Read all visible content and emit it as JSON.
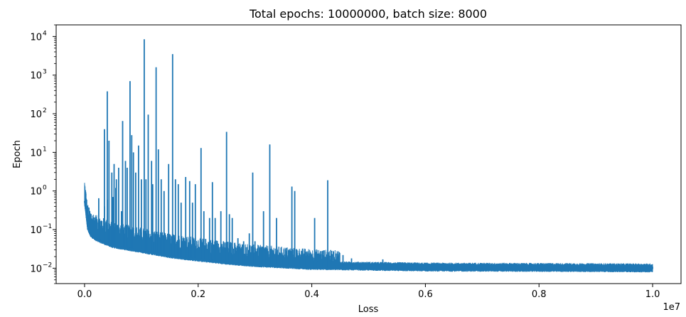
{
  "chart_data": {
    "type": "line",
    "title": "Total epochs: 10000000, batch size: 8000",
    "xlabel": "Loss",
    "ylabel": "Epoch",
    "x_scale_note": "1e7",
    "xlim": [
      -0.05,
      1.05
    ],
    "ylim": [
      0.004,
      20000
    ],
    "y_scale": "log",
    "grid": false,
    "legend": "none",
    "x_ticks": [
      0.0,
      0.2,
      0.4,
      0.6,
      0.8,
      1.0
    ],
    "x_tick_labels": [
      "0.0",
      "0.2",
      "0.4",
      "0.6",
      "0.8",
      "1.0"
    ],
    "y_ticks": [
      0.01,
      0.1,
      1,
      10,
      100,
      1000,
      10000
    ],
    "y_tick_labels": [
      {
        "base": "10",
        "exp": "−2"
      },
      {
        "base": "10",
        "exp": "−1"
      },
      {
        "base": "10",
        "exp": "0"
      },
      {
        "base": "10",
        "exp": "1"
      },
      {
        "base": "10",
        "exp": "2"
      },
      {
        "base": "10",
        "exp": "3"
      },
      {
        "base": "10",
        "exp": "4"
      }
    ],
    "series": [
      {
        "color": "#1f77b4",
        "baseline": [
          [
            0.0,
            0.5
          ],
          [
            0.002,
            0.3
          ],
          [
            0.005,
            0.12
          ],
          [
            0.01,
            0.08
          ],
          [
            0.02,
            0.06
          ],
          [
            0.05,
            0.04
          ],
          [
            0.1,
            0.03
          ],
          [
            0.15,
            0.022
          ],
          [
            0.2,
            0.018
          ],
          [
            0.25,
            0.015
          ],
          [
            0.3,
            0.013
          ],
          [
            0.35,
            0.012
          ],
          [
            0.4,
            0.011
          ],
          [
            0.5,
            0.0105
          ],
          [
            0.6,
            0.01
          ],
          [
            0.8,
            0.0098
          ],
          [
            1.0,
            0.0095
          ]
        ],
        "spikes": [
          [
            0.0,
            0.55
          ],
          [
            0.025,
            0.65
          ],
          [
            0.035,
            0.4
          ],
          [
            0.04,
            0.6
          ],
          [
            0.05,
            0.7
          ],
          [
            0.055,
            1.2
          ],
          [
            0.065,
            0.3
          ],
          [
            0.035,
            40
          ],
          [
            0.04,
            380
          ],
          [
            0.043,
            20
          ],
          [
            0.048,
            3
          ],
          [
            0.052,
            5
          ],
          [
            0.056,
            2
          ],
          [
            0.06,
            4
          ],
          [
            0.067,
            65
          ],
          [
            0.072,
            6
          ],
          [
            0.075,
            4
          ],
          [
            0.08,
            700
          ],
          [
            0.083,
            28
          ],
          [
            0.086,
            10
          ],
          [
            0.09,
            3
          ],
          [
            0.095,
            15
          ],
          [
            0.1,
            2
          ],
          [
            0.105,
            8500
          ],
          [
            0.108,
            2
          ],
          [
            0.112,
            95
          ],
          [
            0.118,
            6
          ],
          [
            0.12,
            1.5
          ],
          [
            0.126,
            1600
          ],
          [
            0.13,
            12
          ],
          [
            0.135,
            2
          ],
          [
            0.14,
            1
          ],
          [
            0.148,
            5
          ],
          [
            0.155,
            3500
          ],
          [
            0.16,
            2
          ],
          [
            0.165,
            1.5
          ],
          [
            0.17,
            0.5
          ],
          [
            0.178,
            2.3
          ],
          [
            0.185,
            1.8
          ],
          [
            0.19,
            0.5
          ],
          [
            0.195,
            1.5
          ],
          [
            0.205,
            13
          ],
          [
            0.21,
            0.3
          ],
          [
            0.22,
            0.2
          ],
          [
            0.225,
            1.7
          ],
          [
            0.23,
            0.2
          ],
          [
            0.24,
            0.3
          ],
          [
            0.25,
            34
          ],
          [
            0.255,
            0.25
          ],
          [
            0.26,
            0.2
          ],
          [
            0.27,
            0.06
          ],
          [
            0.28,
            0.05
          ],
          [
            0.29,
            0.08
          ],
          [
            0.296,
            3
          ],
          [
            0.3,
            0.05
          ],
          [
            0.31,
            0.03
          ],
          [
            0.315,
            0.3
          ],
          [
            0.32,
            0.03
          ],
          [
            0.326,
            16
          ],
          [
            0.33,
            0.03
          ],
          [
            0.338,
            0.2
          ],
          [
            0.35,
            0.02
          ],
          [
            0.36,
            0.02
          ],
          [
            0.365,
            1.3
          ],
          [
            0.37,
            1
          ],
          [
            0.38,
            0.02
          ],
          [
            0.39,
            0.02
          ],
          [
            0.405,
            0.2
          ],
          [
            0.41,
            0.015
          ],
          [
            0.42,
            0.015
          ],
          [
            0.428,
            1.9
          ],
          [
            0.435,
            0.015
          ],
          [
            0.455,
            0.022
          ],
          [
            0.47,
            0.018
          ],
          [
            0.485,
            0.013
          ],
          [
            0.525,
            0.017
          ],
          [
            0.55,
            0.012
          ],
          [
            0.6,
            0.011
          ],
          [
            0.65,
            0.011
          ],
          [
            0.7,
            0.011
          ],
          [
            0.75,
            0.011
          ],
          [
            0.8,
            0.011
          ],
          [
            0.85,
            0.011
          ],
          [
            0.9,
            0.011
          ],
          [
            0.95,
            0.011
          ],
          [
            1.0,
            0.011
          ]
        ]
      }
    ]
  }
}
